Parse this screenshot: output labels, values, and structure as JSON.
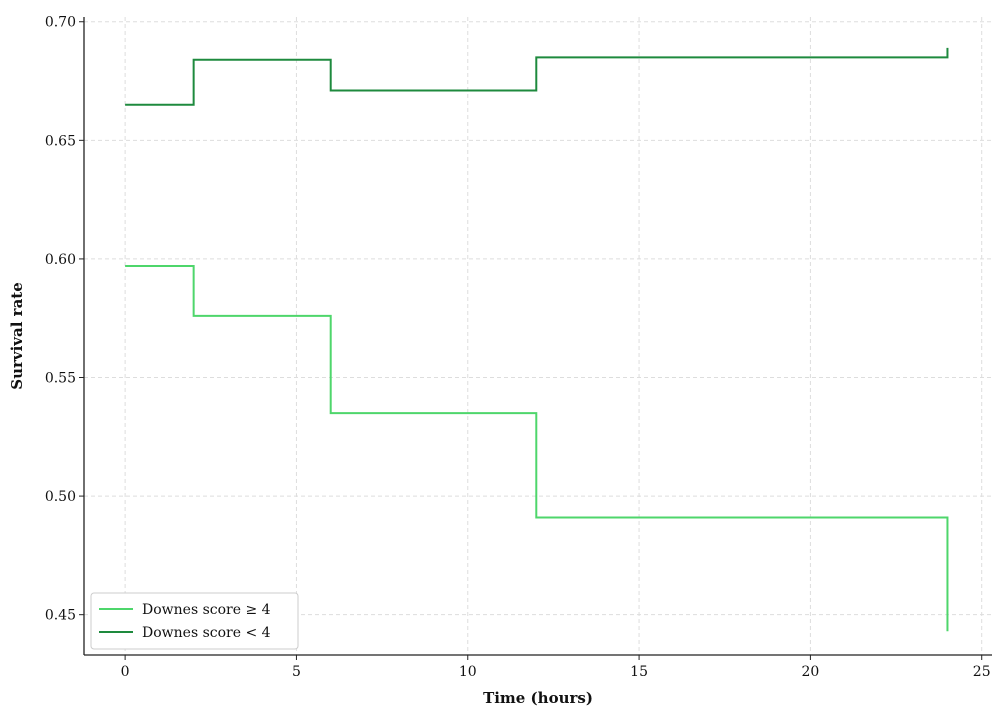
{
  "chart_data": {
    "type": "line",
    "step": true,
    "title": "",
    "xlabel": "Time (hours)",
    "ylabel": "Survival rate",
    "xlim": [
      -1.2,
      25.3
    ],
    "ylim": [
      0.433,
      0.702
    ],
    "xticks": [
      0,
      5,
      10,
      15,
      20,
      25
    ],
    "yticks": [
      0.45,
      0.5,
      0.55,
      0.6,
      0.65,
      0.7
    ],
    "ytick_labels": [
      "0.45",
      "0.50",
      "0.55",
      "0.60",
      "0.65",
      "0.70"
    ],
    "grid": true,
    "legend_position": "bottom-left",
    "series": [
      {
        "name": "Downes score ≥ 4",
        "color": "#4ed66b",
        "x": [
          0,
          2,
          6,
          12,
          24,
          24
        ],
        "y": [
          0.597,
          0.576,
          0.535,
          0.491,
          0.491,
          0.443
        ]
      },
      {
        "name": "Downes score < 4",
        "color": "#1e8a3e",
        "x": [
          0,
          2,
          6,
          12,
          24,
          24
        ],
        "y": [
          0.665,
          0.684,
          0.671,
          0.685,
          0.685,
          0.689
        ]
      }
    ]
  }
}
